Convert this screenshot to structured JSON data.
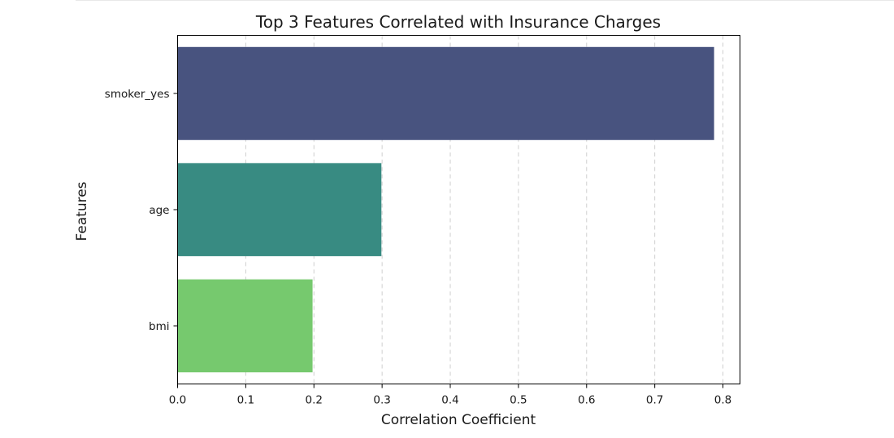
{
  "chart_data": {
    "type": "bar",
    "orientation": "horizontal",
    "title": "Top 3 Features Correlated with Insurance Charges",
    "xlabel": "Correlation Coefficient",
    "ylabel": "Features",
    "categories": [
      "smoker_yes",
      "age",
      "bmi"
    ],
    "values": [
      0.787,
      0.299,
      0.198
    ],
    "colors": [
      "#48537f",
      "#388b82",
      "#76c96e"
    ],
    "xlim": [
      0,
      0.825
    ],
    "xticks": [
      "0.0",
      "0.1",
      "0.2",
      "0.3",
      "0.4",
      "0.5",
      "0.6",
      "0.7",
      "0.8"
    ],
    "grid": "x, dashed",
    "legend": "none"
  }
}
